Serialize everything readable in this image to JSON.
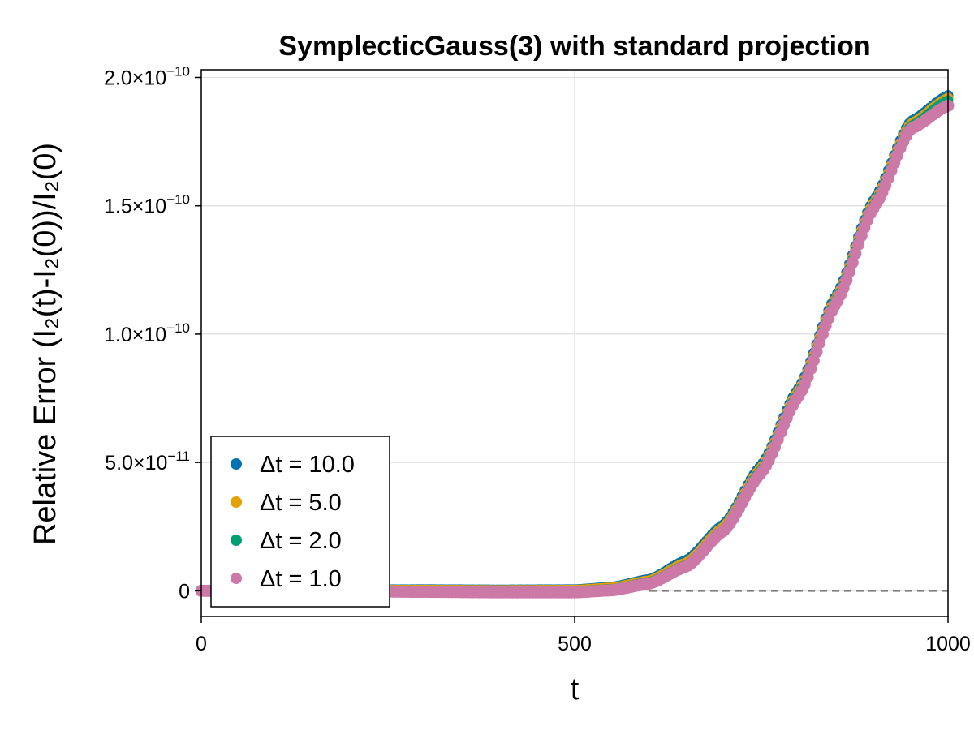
{
  "chart_data": {
    "type": "scatter",
    "title": "SymplecticGauss(3) with standard projection",
    "xlabel": "t",
    "ylabel": "Relative Error (I₂(t)-I₂(0))/I₂(0)",
    "xlim": [
      0,
      1000
    ],
    "ylim": [
      -1e-11,
      2.03e-10
    ],
    "x_ticks": [
      0,
      500,
      1000
    ],
    "x_tick_labels": [
      "0",
      "500",
      "1000"
    ],
    "y_ticks": [
      0,
      5e-11,
      1e-10,
      1.5e-10,
      2e-10
    ],
    "y_tick_labels": [
      {
        "mantissa": "0",
        "exponent": ""
      },
      {
        "mantissa": "5.0×10",
        "exponent": "−11"
      },
      {
        "mantissa": "1.0×10",
        "exponent": "−10"
      },
      {
        "mantissa": "1.5×10",
        "exponent": "−10"
      },
      {
        "mantissa": "2.0×10",
        "exponent": "−10"
      }
    ],
    "grid": true,
    "reference_line": {
      "y": 0,
      "style": "dashed",
      "x_range": [
        600,
        1000
      ],
      "color": "#808080"
    },
    "legend": {
      "position": "bottom-left"
    },
    "series": [
      {
        "name": "Δt = 10.0",
        "color": "#0072B2",
        "x": [
          0,
          100,
          200,
          300,
          400,
          500,
          550,
          600,
          650,
          700,
          750,
          800,
          850,
          900,
          950,
          1000
        ],
        "y": [
          0,
          2e-13,
          4e-13,
          5e-13,
          4e-13,
          5e-13,
          1.5e-12,
          4.5e-12,
          1.2e-11,
          2.6e-11,
          4.9e-11,
          7.9e-11,
          1.15e-10,
          1.52e-10,
          1.83e-10,
          1.93e-10
        ]
      },
      {
        "name": "Δt = 5.0",
        "color": "#E69F00",
        "x": [
          0,
          100,
          200,
          300,
          400,
          500,
          550,
          600,
          650,
          700,
          750,
          800,
          850,
          900,
          950,
          1000
        ],
        "y": [
          0,
          1e-13,
          2e-13,
          3e-13,
          2e-13,
          3e-13,
          1.2e-12,
          4e-12,
          1.1e-11,
          2.5e-11,
          4.8e-11,
          7.8e-11,
          1.14e-10,
          1.51e-10,
          1.82e-10,
          1.92e-10
        ]
      },
      {
        "name": "Δt = 2.0",
        "color": "#009E73",
        "x": [
          0,
          100,
          200,
          300,
          400,
          500,
          550,
          600,
          650,
          700,
          750,
          800,
          850,
          900,
          950,
          1000
        ],
        "y": [
          0,
          0,
          0,
          -1e-13,
          -2e-13,
          -2e-13,
          6e-13,
          3.3e-12,
          1e-11,
          2.4e-11,
          4.7e-11,
          7.7e-11,
          1.13e-10,
          1.5e-10,
          1.81e-10,
          1.91e-10
        ]
      },
      {
        "name": "Δt = 1.0",
        "color": "#CC79A7",
        "x": [
          0,
          100,
          200,
          300,
          400,
          500,
          550,
          600,
          650,
          700,
          750,
          800,
          850,
          900,
          950,
          1000
        ],
        "y": [
          0,
          -1e-13,
          -2e-13,
          -4e-13,
          -6e-13,
          -6e-13,
          2e-13,
          2.8e-12,
          9.5e-12,
          2.35e-11,
          4.6e-11,
          7.6e-11,
          1.12e-10,
          1.49e-10,
          1.8e-10,
          1.89e-10
        ]
      }
    ]
  }
}
